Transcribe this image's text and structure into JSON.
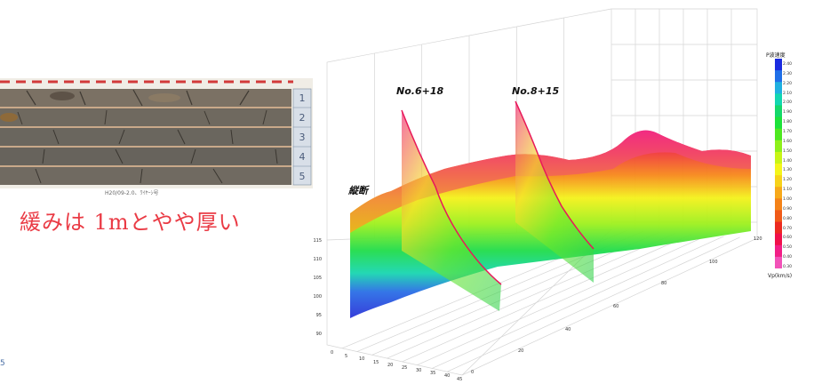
{
  "core_photo": {
    "box_numbers": [
      "1",
      "2",
      "3",
      "4",
      "5"
    ],
    "caption": "H20/09-2.0、ﾜｲﾔｰｼ号",
    "note": "緩みは 1mとやや厚い"
  },
  "page_number": "5",
  "sections": {
    "longitudinal": "縦断",
    "cross_1": "No.6+18",
    "cross_2": "No.8+15"
  },
  "legend": {
    "title": "P波速度",
    "unit": "Vp(km/s)",
    "ticks": [
      "2.40",
      "2.30",
      "2.20",
      "2.10",
      "2.00",
      "1.90",
      "1.80",
      "1.70",
      "1.60",
      "1.50",
      "1.40",
      "1.30",
      "1.20",
      "1.10",
      "1.00",
      "0.90",
      "0.80",
      "0.70",
      "0.60",
      "0.50",
      "0.40",
      "0.30"
    ],
    "colors": [
      "#1a2be0",
      "#1f6fe8",
      "#1fb0e0",
      "#12d6b0",
      "#14d86a",
      "#1ce23a",
      "#4ee820",
      "#8ef01a",
      "#c8f516",
      "#f4f51a",
      "#f7d21a",
      "#f7a91a",
      "#f48218",
      "#f05a18",
      "#ec2a20",
      "#f0104a",
      "#f21e86",
      "#f252b8"
    ]
  },
  "axes": {
    "z_ticks": [
      "115",
      "110",
      "105",
      "100",
      "95",
      "90"
    ],
    "x_ticks": [
      "0",
      "5",
      "10",
      "15",
      "20",
      "25",
      "30",
      "35",
      "40",
      "45"
    ],
    "y_ticks": [
      "0",
      "20",
      "40",
      "60",
      "80",
      "100",
      "120"
    ]
  }
}
